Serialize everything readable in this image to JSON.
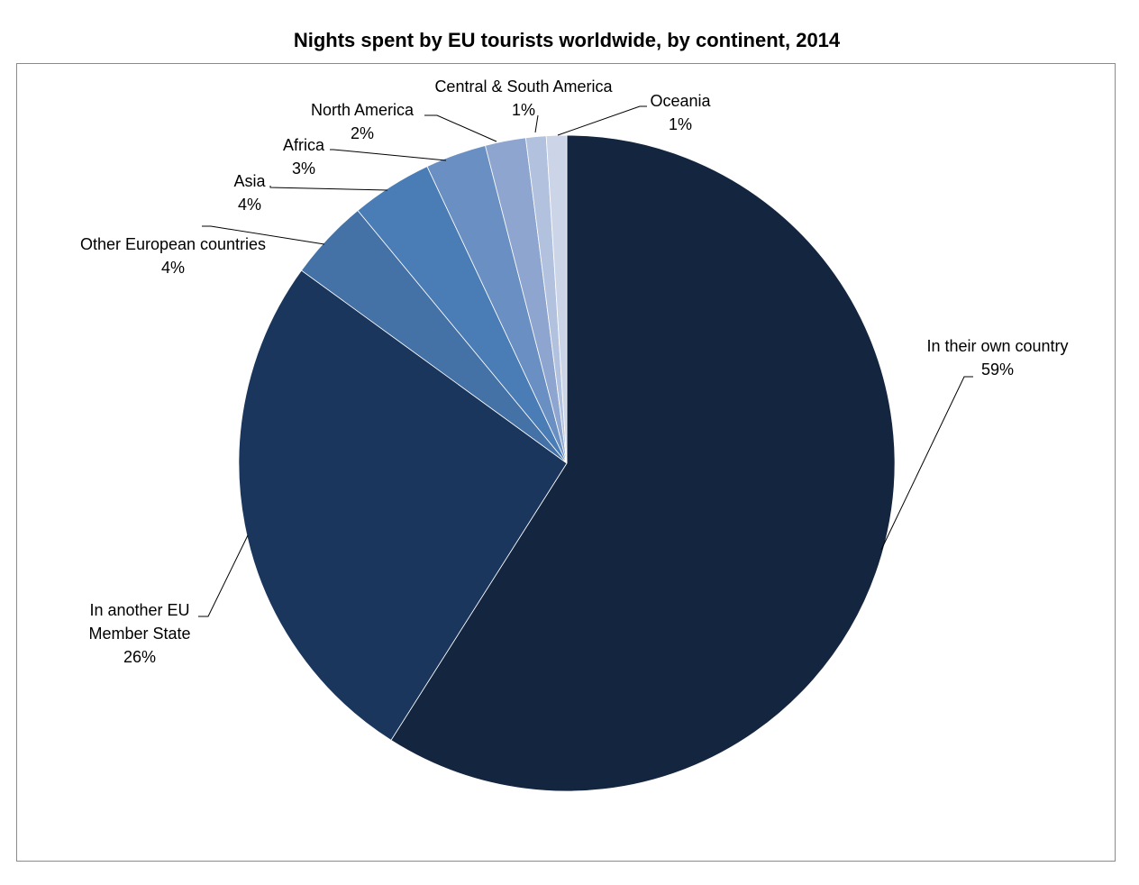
{
  "chart_data": {
    "type": "pie",
    "title": "Nights spent by EU tourists worldwide, by continent, 2014",
    "slices": [
      {
        "label_lines": [
          "In their own country"
        ],
        "pct_label": "59%",
        "value": 59,
        "color": "#13253f"
      },
      {
        "label_lines": [
          "In another EU",
          "Member State"
        ],
        "pct_label": "26%",
        "value": 26,
        "color": "#1a365c"
      },
      {
        "label_lines": [
          "Other European countries"
        ],
        "pct_label": "4%",
        "value": 4,
        "color": "#4472a6"
      },
      {
        "label_lines": [
          "Asia"
        ],
        "pct_label": "4%",
        "value": 4,
        "color": "#4a7cb6"
      },
      {
        "label_lines": [
          "Africa"
        ],
        "pct_label": "3%",
        "value": 3,
        "color": "#6a8fc3"
      },
      {
        "label_lines": [
          "North America"
        ],
        "pct_label": "2%",
        "value": 2,
        "color": "#8ea6cf"
      },
      {
        "label_lines": [
          "Central & South America"
        ],
        "pct_label": "1%",
        "value": 1,
        "color": "#b1c1de"
      },
      {
        "label_lines": [
          "Oceania"
        ],
        "pct_label": "1%",
        "value": 1,
        "color": "#ccd5e8"
      }
    ],
    "start_angle_deg": 0,
    "direction": "clockwise",
    "legend": "none",
    "data_labels": "outside with leader lines"
  }
}
